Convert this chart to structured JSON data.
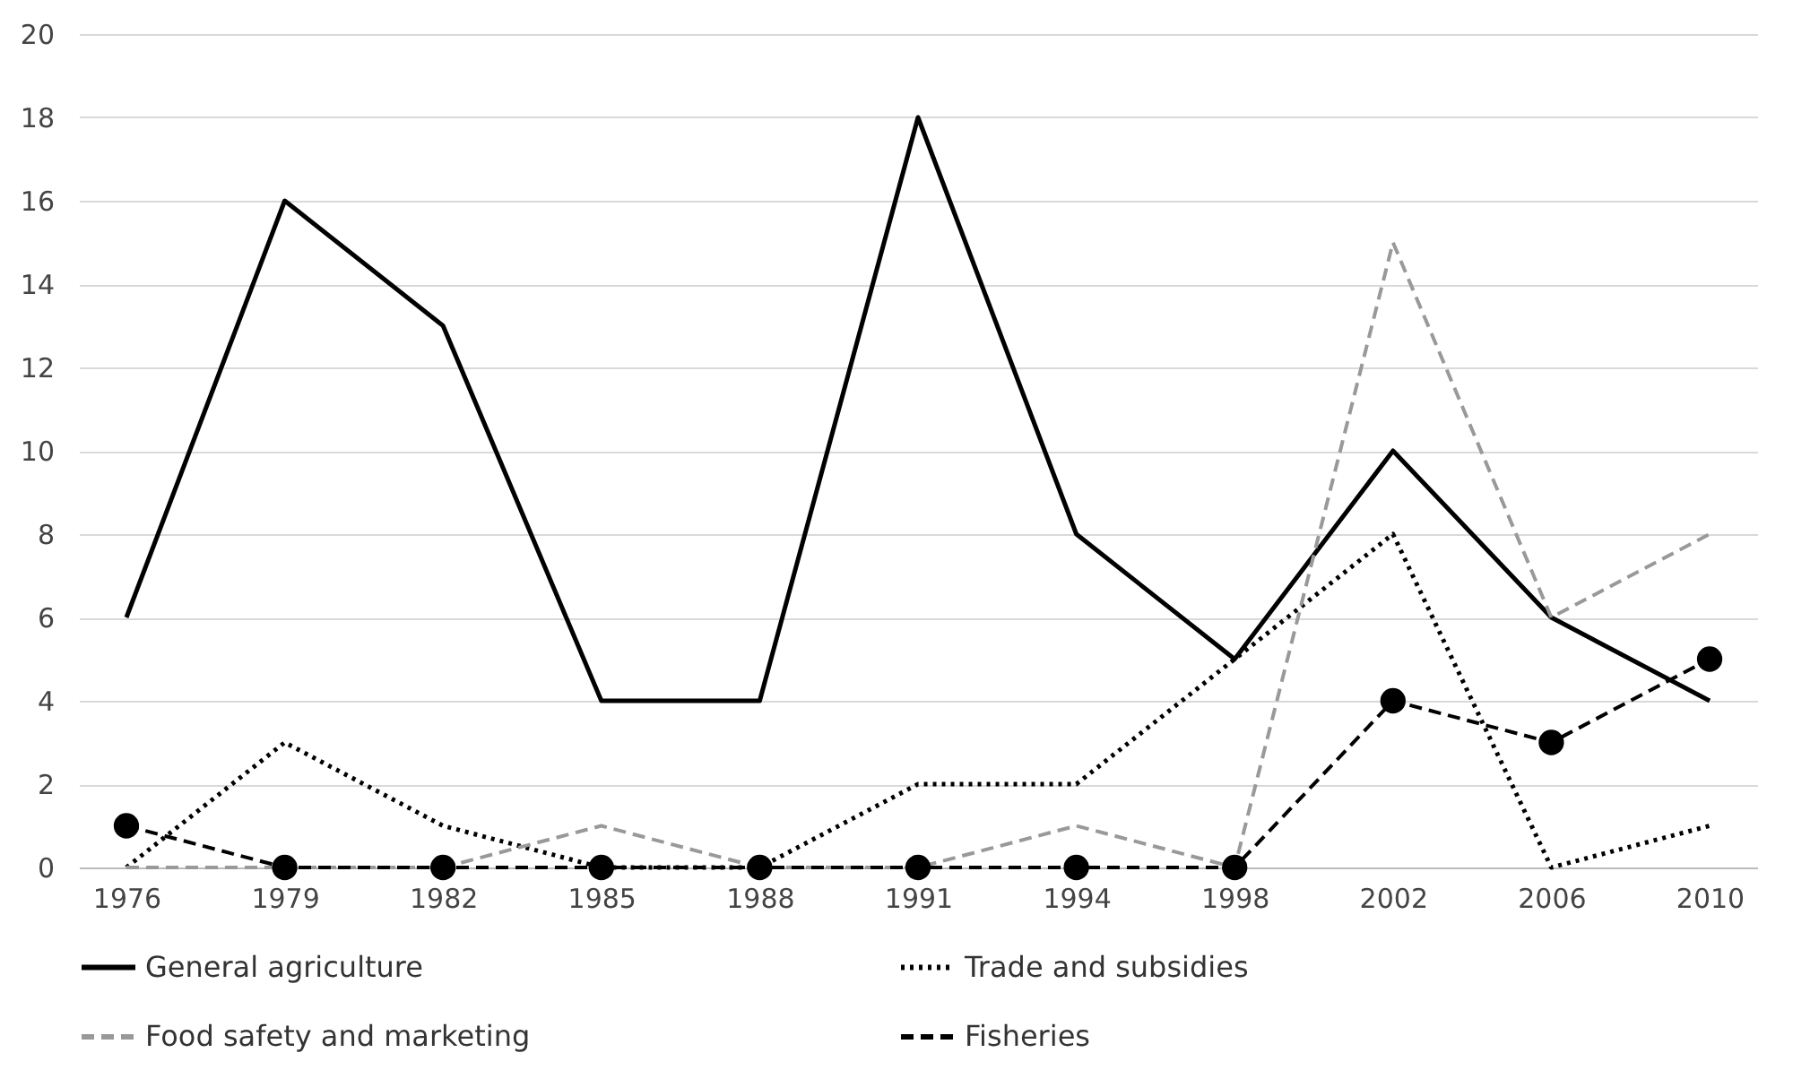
{
  "chart_data": {
    "type": "line",
    "categories": [
      "1976",
      "1979",
      "1982",
      "1985",
      "1988",
      "1991",
      "1994",
      "1998",
      "2002",
      "2006",
      "2010"
    ],
    "series": [
      {
        "name": "General agriculture",
        "color": "#000000",
        "line_style": "solid",
        "marker": "none",
        "values": [
          6,
          16,
          13,
          4,
          4,
          18,
          8,
          5,
          10,
          6,
          4
        ]
      },
      {
        "name": "Trade and subsidies",
        "color": "#000000",
        "line_style": "dotted",
        "marker": "none",
        "values": [
          0,
          3,
          1,
          0,
          0,
          2,
          2,
          5,
          8,
          0,
          1
        ]
      },
      {
        "name": "Food safety and marketing",
        "color": "#999999",
        "line_style": "dashed",
        "marker": "none",
        "values": [
          0,
          0,
          0,
          1,
          0,
          0,
          1,
          0,
          15,
          6,
          8
        ]
      },
      {
        "name": "Fisheries",
        "color": "#000000",
        "line_style": "dashed",
        "marker": "circle",
        "values": [
          1,
          0,
          0,
          0,
          0,
          0,
          0,
          0,
          4,
          3,
          5
        ]
      }
    ],
    "ylim": [
      0,
      20
    ],
    "yticks": [
      0,
      2,
      4,
      6,
      8,
      10,
      12,
      14,
      16,
      18,
      20
    ],
    "grid": "y",
    "legend": "bottom"
  }
}
